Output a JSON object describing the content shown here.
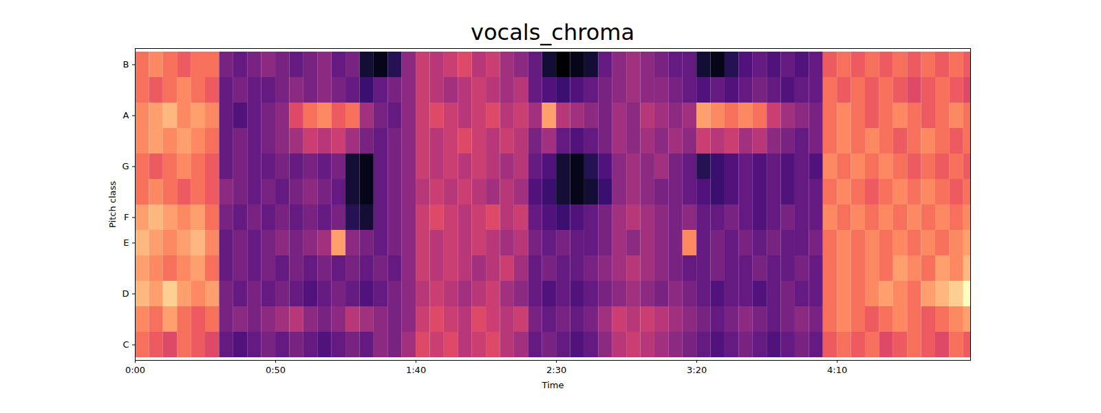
{
  "chart_data": {
    "type": "heatmap",
    "title": "vocals_chroma",
    "x_label": "Time",
    "y_label": "Pitch class",
    "color": "magma",
    "xlim": [
      0,
      297.5
    ],
    "xticks": [
      {
        "value": 0,
        "label": "0:00"
      },
      {
        "value": 50,
        "label": "0:50"
      },
      {
        "value": 100,
        "label": "1:40"
      },
      {
        "value": 150,
        "label": "2:30"
      },
      {
        "value": 200,
        "label": "3:20"
      },
      {
        "value": 250,
        "label": "4:10"
      }
    ],
    "categories": [
      "C",
      null,
      "D",
      null,
      "E",
      "F",
      null,
      "G",
      null,
      "A",
      null,
      "B"
    ],
    "x": [
      0,
      5,
      10,
      15,
      20,
      25,
      30,
      35,
      40,
      45,
      50,
      55,
      60,
      65,
      70,
      75,
      80,
      85,
      90,
      95,
      100,
      105,
      110,
      115,
      120,
      125,
      130,
      135,
      140,
      145,
      150,
      155,
      160,
      165,
      170,
      175,
      180,
      185,
      190,
      195,
      200,
      205,
      210,
      215,
      220,
      225,
      230,
      235,
      240,
      245,
      250,
      255,
      260,
      265,
      270,
      275,
      280,
      285,
      290,
      295
    ],
    "values": [
      [
        0.7,
        0.65,
        0.6,
        0.7,
        0.65,
        0.6,
        0.3,
        0.25,
        0.3,
        0.35,
        0.3,
        0.35,
        0.3,
        0.25,
        0.3,
        0.35,
        0.3,
        0.4,
        0.35,
        0.45,
        0.6,
        0.55,
        0.6,
        0.5,
        0.55,
        0.6,
        0.5,
        0.45,
        0.3,
        0.35,
        0.3,
        0.25,
        0.3,
        0.4,
        0.5,
        0.55,
        0.5,
        0.45,
        0.4,
        0.35,
        0.3,
        0.25,
        0.3,
        0.35,
        0.3,
        0.25,
        0.3,
        0.35,
        0.3,
        0.65,
        0.7,
        0.65,
        0.7,
        0.6,
        0.65,
        0.7,
        0.65,
        0.6,
        0.7,
        0.65
      ],
      [
        0.75,
        0.7,
        0.8,
        0.7,
        0.65,
        0.7,
        0.35,
        0.4,
        0.35,
        0.4,
        0.45,
        0.5,
        0.4,
        0.35,
        0.4,
        0.5,
        0.45,
        0.4,
        0.35,
        0.4,
        0.55,
        0.6,
        0.55,
        0.5,
        0.6,
        0.55,
        0.5,
        0.55,
        0.35,
        0.3,
        0.35,
        0.3,
        0.35,
        0.45,
        0.55,
        0.5,
        0.55,
        0.5,
        0.45,
        0.4,
        0.35,
        0.3,
        0.35,
        0.4,
        0.35,
        0.3,
        0.35,
        0.4,
        0.35,
        0.7,
        0.75,
        0.7,
        0.65,
        0.7,
        0.75,
        0.7,
        0.65,
        0.7,
        0.75,
        0.8
      ],
      [
        0.85,
        0.8,
        0.9,
        0.8,
        0.75,
        0.8,
        0.35,
        0.3,
        0.35,
        0.3,
        0.35,
        0.3,
        0.25,
        0.3,
        0.35,
        0.3,
        0.25,
        0.3,
        0.35,
        0.4,
        0.5,
        0.55,
        0.5,
        0.45,
        0.5,
        0.55,
        0.45,
        0.4,
        0.3,
        0.25,
        0.3,
        0.25,
        0.3,
        0.35,
        0.4,
        0.45,
        0.4,
        0.35,
        0.4,
        0.35,
        0.3,
        0.25,
        0.3,
        0.3,
        0.25,
        0.3,
        0.35,
        0.3,
        0.3,
        0.7,
        0.75,
        0.7,
        0.75,
        0.8,
        0.75,
        0.7,
        0.8,
        0.85,
        0.9,
        1.0
      ],
      [
        0.8,
        0.75,
        0.7,
        0.75,
        0.8,
        0.7,
        0.3,
        0.35,
        0.3,
        0.35,
        0.3,
        0.35,
        0.3,
        0.35,
        0.3,
        0.35,
        0.3,
        0.35,
        0.3,
        0.4,
        0.55,
        0.5,
        0.55,
        0.5,
        0.45,
        0.5,
        0.55,
        0.45,
        0.3,
        0.35,
        0.3,
        0.3,
        0.35,
        0.4,
        0.45,
        0.5,
        0.45,
        0.4,
        0.35,
        0.3,
        0.3,
        0.35,
        0.3,
        0.3,
        0.35,
        0.3,
        0.3,
        0.35,
        0.3,
        0.7,
        0.75,
        0.7,
        0.75,
        0.7,
        0.8,
        0.75,
        0.7,
        0.8,
        0.75,
        0.85
      ],
      [
        0.85,
        0.8,
        0.75,
        0.8,
        0.85,
        0.75,
        0.3,
        0.35,
        0.3,
        0.35,
        0.4,
        0.35,
        0.4,
        0.45,
        0.8,
        0.4,
        0.35,
        0.3,
        0.35,
        0.4,
        0.55,
        0.5,
        0.55,
        0.5,
        0.55,
        0.5,
        0.45,
        0.5,
        0.35,
        0.3,
        0.35,
        0.3,
        0.3,
        0.35,
        0.45,
        0.4,
        0.45,
        0.4,
        0.35,
        0.75,
        0.3,
        0.35,
        0.3,
        0.35,
        0.3,
        0.35,
        0.3,
        0.3,
        0.35,
        0.7,
        0.75,
        0.7,
        0.75,
        0.7,
        0.75,
        0.7,
        0.75,
        0.7,
        0.75,
        0.8
      ],
      [
        0.8,
        0.85,
        0.8,
        0.75,
        0.8,
        0.7,
        0.35,
        0.3,
        0.35,
        0.3,
        0.35,
        0.3,
        0.35,
        0.3,
        0.35,
        0.15,
        0.1,
        0.3,
        0.35,
        0.4,
        0.55,
        0.6,
        0.55,
        0.5,
        0.55,
        0.6,
        0.5,
        0.55,
        0.3,
        0.25,
        0.2,
        0.25,
        0.3,
        0.35,
        0.45,
        0.5,
        0.45,
        0.4,
        0.35,
        0.4,
        0.3,
        0.3,
        0.35,
        0.3,
        0.25,
        0.3,
        0.35,
        0.3,
        0.3,
        0.75,
        0.7,
        0.75,
        0.7,
        0.75,
        0.7,
        0.75,
        0.7,
        0.75,
        0.7,
        0.75
      ],
      [
        0.7,
        0.75,
        0.7,
        0.65,
        0.7,
        0.65,
        0.4,
        0.35,
        0.3,
        0.35,
        0.3,
        0.35,
        0.4,
        0.35,
        0.3,
        0.1,
        0.05,
        0.3,
        0.35,
        0.4,
        0.5,
        0.55,
        0.5,
        0.55,
        0.5,
        0.45,
        0.5,
        0.45,
        0.25,
        0.2,
        0.1,
        0.05,
        0.1,
        0.2,
        0.4,
        0.45,
        0.4,
        0.35,
        0.35,
        0.3,
        0.25,
        0.2,
        0.25,
        0.3,
        0.25,
        0.3,
        0.25,
        0.3,
        0.3,
        0.7,
        0.75,
        0.7,
        0.65,
        0.7,
        0.75,
        0.7,
        0.75,
        0.7,
        0.65,
        0.7
      ],
      [
        0.7,
        0.65,
        0.7,
        0.75,
        0.7,
        0.65,
        0.3,
        0.35,
        0.3,
        0.3,
        0.35,
        0.3,
        0.35,
        0.3,
        0.35,
        0.1,
        0.05,
        0.3,
        0.35,
        0.4,
        0.55,
        0.5,
        0.55,
        0.5,
        0.55,
        0.5,
        0.45,
        0.5,
        0.3,
        0.25,
        0.1,
        0.05,
        0.15,
        0.25,
        0.4,
        0.45,
        0.4,
        0.45,
        0.35,
        0.3,
        0.15,
        0.2,
        0.25,
        0.3,
        0.25,
        0.3,
        0.25,
        0.3,
        0.25,
        0.75,
        0.7,
        0.75,
        0.7,
        0.75,
        0.7,
        0.65,
        0.7,
        0.65,
        0.7,
        0.65
      ],
      [
        0.75,
        0.8,
        0.75,
        0.8,
        0.75,
        0.7,
        0.3,
        0.35,
        0.3,
        0.35,
        0.4,
        0.45,
        0.55,
        0.5,
        0.55,
        0.45,
        0.35,
        0.3,
        0.35,
        0.4,
        0.55,
        0.5,
        0.55,
        0.6,
        0.55,
        0.5,
        0.55,
        0.5,
        0.35,
        0.45,
        0.3,
        0.25,
        0.3,
        0.35,
        0.45,
        0.4,
        0.45,
        0.4,
        0.45,
        0.4,
        0.55,
        0.5,
        0.55,
        0.45,
        0.5,
        0.4,
        0.35,
        0.3,
        0.35,
        0.7,
        0.75,
        0.7,
        0.75,
        0.7,
        0.65,
        0.7,
        0.75,
        0.7,
        0.65,
        0.7
      ],
      [
        0.75,
        0.8,
        0.85,
        0.75,
        0.8,
        0.75,
        0.3,
        0.25,
        0.3,
        0.35,
        0.4,
        0.6,
        0.7,
        0.75,
        0.65,
        0.7,
        0.45,
        0.35,
        0.3,
        0.4,
        0.55,
        0.6,
        0.55,
        0.5,
        0.55,
        0.6,
        0.5,
        0.55,
        0.45,
        0.8,
        0.5,
        0.45,
        0.4,
        0.35,
        0.45,
        0.4,
        0.5,
        0.45,
        0.4,
        0.45,
        0.8,
        0.75,
        0.7,
        0.75,
        0.7,
        0.55,
        0.45,
        0.4,
        0.35,
        0.7,
        0.75,
        0.7,
        0.65,
        0.7,
        0.75,
        0.7,
        0.65,
        0.7,
        0.75,
        0.7
      ],
      [
        0.7,
        0.65,
        0.7,
        0.75,
        0.7,
        0.65,
        0.3,
        0.35,
        0.3,
        0.3,
        0.35,
        0.4,
        0.35,
        0.4,
        0.35,
        0.3,
        0.2,
        0.3,
        0.35,
        0.4,
        0.55,
        0.5,
        0.45,
        0.5,
        0.55,
        0.5,
        0.45,
        0.5,
        0.3,
        0.25,
        0.2,
        0.25,
        0.3,
        0.35,
        0.4,
        0.45,
        0.4,
        0.4,
        0.35,
        0.3,
        0.25,
        0.3,
        0.25,
        0.3,
        0.35,
        0.3,
        0.25,
        0.3,
        0.3,
        0.7,
        0.65,
        0.7,
        0.65,
        0.7,
        0.65,
        0.6,
        0.65,
        0.7,
        0.65,
        0.6
      ],
      [
        0.7,
        0.75,
        0.7,
        0.65,
        0.7,
        0.7,
        0.35,
        0.3,
        0.35,
        0.4,
        0.35,
        0.3,
        0.35,
        0.4,
        0.3,
        0.35,
        0.1,
        0.05,
        0.15,
        0.4,
        0.55,
        0.5,
        0.55,
        0.6,
        0.5,
        0.55,
        0.45,
        0.4,
        0.3,
        0.1,
        0.0,
        0.05,
        0.1,
        0.3,
        0.4,
        0.45,
        0.4,
        0.35,
        0.3,
        0.3,
        0.1,
        0.05,
        0.15,
        0.25,
        0.3,
        0.25,
        0.3,
        0.25,
        0.3,
        0.65,
        0.7,
        0.65,
        0.7,
        0.65,
        0.7,
        0.65,
        0.7,
        0.65,
        0.7,
        0.65
      ]
    ]
  }
}
